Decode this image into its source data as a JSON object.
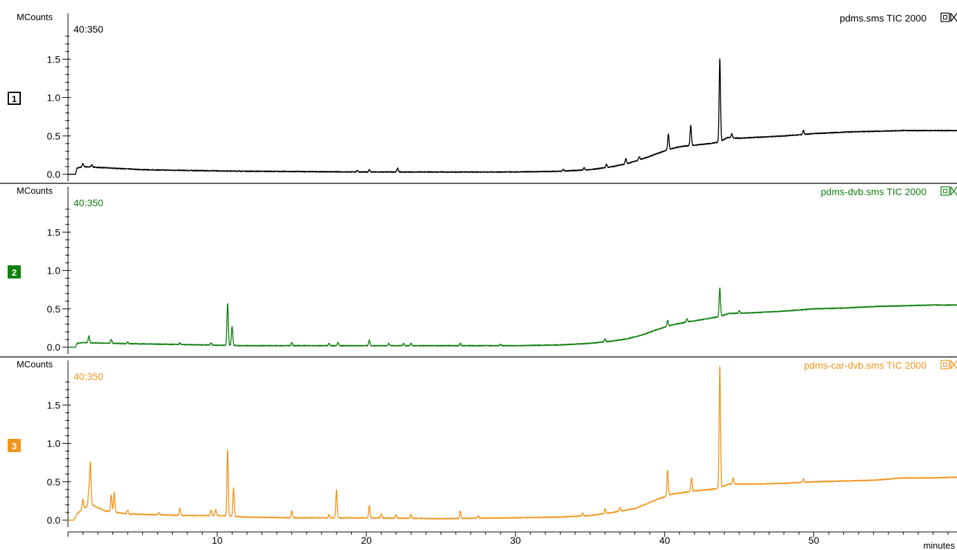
{
  "chart_data": {
    "type": "line",
    "x_axis": {
      "label": "minutes",
      "range": [
        0,
        59.6
      ],
      "ticks": [
        10,
        20,
        30,
        40,
        50
      ],
      "tick_labels": [
        "10",
        "20",
        "30",
        "40",
        "50"
      ]
    },
    "panels": [
      {
        "index_label": "1",
        "color": "#000000",
        "ylabel": "MCounts",
        "mass_range": "40:350",
        "trace_label": "pdms.sms TIC  2000",
        "ylim": [
          0,
          1.9
        ],
        "yticks": [
          "0.0",
          "0.5",
          "1.0",
          "1.5"
        ],
        "baseline": [
          [
            0,
            0.0
          ],
          [
            0.5,
            0.0
          ],
          [
            0.6,
            0.08
          ],
          [
            1,
            0.1
          ],
          [
            3,
            0.08
          ],
          [
            5,
            0.06
          ],
          [
            8,
            0.05
          ],
          [
            12,
            0.04
          ],
          [
            20,
            0.03
          ],
          [
            25,
            0.03
          ],
          [
            30,
            0.03
          ],
          [
            33,
            0.04
          ],
          [
            35,
            0.06
          ],
          [
            36.5,
            0.1
          ],
          [
            37.5,
            0.14
          ],
          [
            38.5,
            0.2
          ],
          [
            39.5,
            0.27
          ],
          [
            40.2,
            0.32
          ],
          [
            41,
            0.36
          ],
          [
            42,
            0.38
          ],
          [
            43,
            0.4
          ],
          [
            43.7,
            0.42
          ],
          [
            44.2,
            0.48
          ],
          [
            45,
            0.47
          ],
          [
            46,
            0.48
          ],
          [
            48,
            0.5
          ],
          [
            50,
            0.53
          ],
          [
            52,
            0.55
          ],
          [
            54,
            0.56
          ],
          [
            56,
            0.57
          ],
          [
            58,
            0.57
          ],
          [
            59.6,
            0.57
          ]
        ],
        "peaks": [
          [
            1.0,
            0.04
          ],
          [
            1.6,
            0.03
          ],
          [
            19.4,
            0.02
          ],
          [
            20.2,
            0.03
          ],
          [
            22.1,
            0.05
          ],
          [
            33.2,
            0.02
          ],
          [
            34.6,
            0.03
          ],
          [
            36.1,
            0.04
          ],
          [
            37.4,
            0.07
          ],
          [
            38.3,
            0.04
          ],
          [
            40.25,
            0.2
          ],
          [
            41.75,
            0.26
          ],
          [
            43.7,
            1.08
          ],
          [
            44.5,
            0.05
          ],
          [
            49.3,
            0.05
          ]
        ]
      },
      {
        "index_label": "2",
        "color": "#118011",
        "ylabel": "MCounts",
        "mass_range": "40:350",
        "trace_label": "pdms-dvb.sms TIC  2000",
        "ylim": [
          0,
          1.9
        ],
        "yticks": [
          "0.0",
          "0.5",
          "1.0",
          "1.5"
        ],
        "baseline": [
          [
            0,
            0.0
          ],
          [
            0.5,
            0.0
          ],
          [
            0.6,
            0.05
          ],
          [
            1,
            0.06
          ],
          [
            3,
            0.05
          ],
          [
            6,
            0.04
          ],
          [
            9,
            0.03
          ],
          [
            12,
            0.02
          ],
          [
            20,
            0.02
          ],
          [
            25,
            0.02
          ],
          [
            30,
            0.02
          ],
          [
            33,
            0.03
          ],
          [
            35,
            0.05
          ],
          [
            36.5,
            0.08
          ],
          [
            37.5,
            0.11
          ],
          [
            38.5,
            0.16
          ],
          [
            39.5,
            0.23
          ],
          [
            40.5,
            0.29
          ],
          [
            41.5,
            0.33
          ],
          [
            42.5,
            0.36
          ],
          [
            43.7,
            0.4
          ],
          [
            44.3,
            0.44
          ],
          [
            46,
            0.45
          ],
          [
            48,
            0.47
          ],
          [
            50,
            0.5
          ],
          [
            52,
            0.51
          ],
          [
            54,
            0.53
          ],
          [
            56,
            0.54
          ],
          [
            58,
            0.55
          ],
          [
            59.6,
            0.55
          ]
        ],
        "peaks": [
          [
            1.4,
            0.09
          ],
          [
            2.9,
            0.05
          ],
          [
            4.0,
            0.02
          ],
          [
            7.5,
            0.02
          ],
          [
            9.6,
            0.03
          ],
          [
            10.7,
            0.55
          ],
          [
            11.0,
            0.25
          ],
          [
            15.0,
            0.04
          ],
          [
            17.5,
            0.03
          ],
          [
            18.1,
            0.04
          ],
          [
            20.2,
            0.07
          ],
          [
            21.5,
            0.03
          ],
          [
            22.5,
            0.03
          ],
          [
            23.0,
            0.03
          ],
          [
            26.3,
            0.03
          ],
          [
            29.0,
            0.02
          ],
          [
            36.0,
            0.04
          ],
          [
            40.2,
            0.08
          ],
          [
            41.5,
            0.04
          ],
          [
            43.7,
            0.37
          ],
          [
            45.0,
            0.03
          ]
        ]
      },
      {
        "index_label": "3",
        "color": "#f0961e",
        "ylabel": "MCounts",
        "mass_range": "40:350",
        "trace_label": "pdms-car-dvb.sms TIC  2000",
        "ylim": [
          0,
          1.9
        ],
        "yticks": [
          "0.0",
          "0.5",
          "1.0",
          "1.5"
        ],
        "baseline": [
          [
            0,
            0.0
          ],
          [
            0.4,
            0.0
          ],
          [
            0.6,
            0.08
          ],
          [
            1,
            0.15
          ],
          [
            1.6,
            0.2
          ],
          [
            2.5,
            0.12
          ],
          [
            4,
            0.08
          ],
          [
            6,
            0.07
          ],
          [
            8,
            0.06
          ],
          [
            10,
            0.06
          ],
          [
            12,
            0.04
          ],
          [
            15,
            0.03
          ],
          [
            20,
            0.03
          ],
          [
            25,
            0.02
          ],
          [
            30,
            0.03
          ],
          [
            33,
            0.04
          ],
          [
            35,
            0.06
          ],
          [
            36.5,
            0.1
          ],
          [
            38,
            0.15
          ],
          [
            39.5,
            0.27
          ],
          [
            40.5,
            0.34
          ],
          [
            42,
            0.38
          ],
          [
            43.5,
            0.41
          ],
          [
            44.3,
            0.47
          ],
          [
            46,
            0.47
          ],
          [
            48,
            0.48
          ],
          [
            50,
            0.5
          ],
          [
            52,
            0.51
          ],
          [
            54,
            0.52
          ],
          [
            56,
            0.55
          ],
          [
            58,
            0.55
          ],
          [
            59.6,
            0.56
          ]
        ],
        "peaks": [
          [
            1.0,
            0.12
          ],
          [
            1.4,
            0.2
          ],
          [
            1.5,
            0.55
          ],
          [
            2.9,
            0.22
          ],
          [
            3.1,
            0.26
          ],
          [
            4.0,
            0.05
          ],
          [
            6.1,
            0.03
          ],
          [
            7.5,
            0.09
          ],
          [
            9.6,
            0.07
          ],
          [
            9.9,
            0.08
          ],
          [
            10.7,
            0.86
          ],
          [
            11.1,
            0.37
          ],
          [
            15.0,
            0.09
          ],
          [
            17.5,
            0.04
          ],
          [
            18.0,
            0.36
          ],
          [
            20.2,
            0.16
          ],
          [
            21.0,
            0.05
          ],
          [
            22.0,
            0.04
          ],
          [
            23.0,
            0.05
          ],
          [
            26.3,
            0.1
          ],
          [
            27.5,
            0.03
          ],
          [
            34.5,
            0.04
          ],
          [
            36.0,
            0.06
          ],
          [
            37.0,
            0.05
          ],
          [
            40.2,
            0.33
          ],
          [
            41.8,
            0.18
          ],
          [
            43.7,
            1.58
          ],
          [
            44.6,
            0.08
          ],
          [
            49.3,
            0.05
          ]
        ]
      }
    ]
  }
}
